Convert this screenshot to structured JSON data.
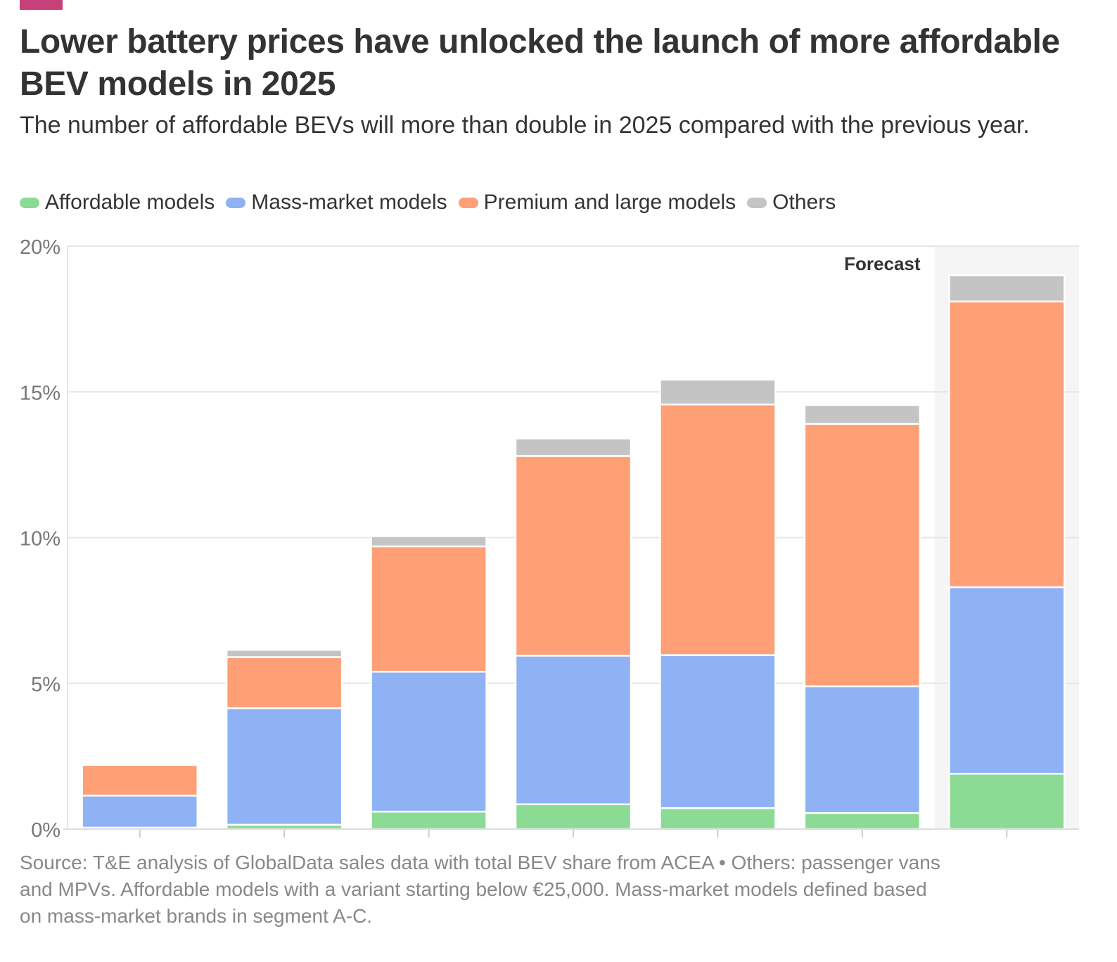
{
  "colors": {
    "accent": "#c6417a",
    "affordable": "#8cdb95",
    "mass_market": "#8fb2f5",
    "premium": "#ff9f75",
    "others": "#c4c4c4",
    "forecast_bg": "#f5f5f5",
    "grid": "#e6e6e6"
  },
  "header": {
    "title": "Lower battery prices have unlocked the launch of more affordable BEV models in 2025",
    "subtitle": "The number of affordable BEVs will more than double in 2025 compared with the previous year."
  },
  "legend": [
    {
      "label": "Affordable models",
      "color_key": "affordable"
    },
    {
      "label": "Mass-market models",
      "color_key": "mass_market"
    },
    {
      "label": "Premium and large models",
      "color_key": "premium"
    },
    {
      "label": "Others",
      "color_key": "others"
    }
  ],
  "chart_data": {
    "type": "bar",
    "stacked": true,
    "title": "Lower battery prices have unlocked the launch of more affordable BEV models in 2025",
    "subtitle": "The number of affordable BEVs will more than double in 2025 compared with the previous year.",
    "categories": [
      "",
      "",
      "",
      "",
      "",
      "",
      ""
    ],
    "ylim": [
      0,
      20
    ],
    "yticks": [
      0,
      5,
      10,
      15,
      20
    ],
    "ytick_labels": [
      "0%",
      "5%",
      "10%",
      "15%",
      "20%"
    ],
    "grid": true,
    "legend_position": "top-left",
    "annotation": {
      "text": "Forecast",
      "category_index": 6
    },
    "series": [
      {
        "name": "Affordable models",
        "color_key": "affordable",
        "values": [
          0.05,
          0.15,
          0.6,
          0.85,
          0.72,
          0.55,
          1.9
        ]
      },
      {
        "name": "Mass-market models",
        "color_key": "mass_market",
        "values": [
          1.1,
          4.0,
          4.8,
          5.1,
          5.25,
          4.35,
          6.4
        ]
      },
      {
        "name": "Premium and large models",
        "color_key": "premium",
        "values": [
          1.05,
          1.75,
          4.3,
          6.85,
          8.6,
          9.0,
          9.8
        ]
      },
      {
        "name": "Others",
        "color_key": "others",
        "values": [
          0.05,
          0.25,
          0.35,
          0.6,
          0.85,
          0.65,
          0.9
        ]
      }
    ]
  },
  "footer": {
    "source": "Source: T&E analysis of GlobalData sales data with total BEV share from ACEA • Others: passenger vans and MPVs. Affordable models with a variant starting below €25,000. Mass-market models defined based on mass-market brands in segment A-C."
  }
}
